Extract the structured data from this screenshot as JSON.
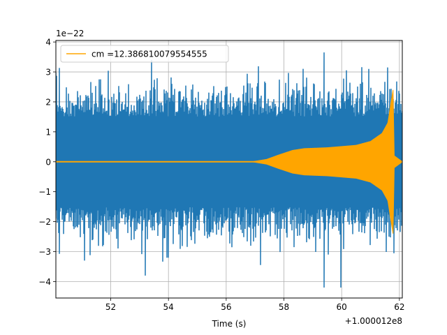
{
  "chart_data": {
    "type": "line",
    "title": "",
    "xlabel": "Time (s)",
    "ylabel": "",
    "x_offset_label": "+1.000012e8",
    "y_scale_label": "1e−22",
    "xlim": [
      50.1,
      62.1
    ],
    "ylim": [
      -4.55,
      4.05
    ],
    "x_ticks": [
      52,
      54,
      56,
      58,
      60,
      62
    ],
    "x_tick_labels": [
      "52",
      "54",
      "56",
      "58",
      "60",
      "62"
    ],
    "y_ticks": [
      -4,
      -3,
      -2,
      -1,
      0,
      1,
      2,
      3,
      4
    ],
    "y_tick_labels": [
      "−4",
      "−3",
      "−2",
      "−1",
      "0",
      "1",
      "2",
      "3",
      "4"
    ],
    "grid": true,
    "legend_placement": "upper-left",
    "series": [
      {
        "kind": "noise-strain",
        "color": "#1f77b4",
        "typical_amplitude": 2.1,
        "min_value": -4.2,
        "max_value": 3.65,
        "peaks": [
          {
            "x": 59.4,
            "y": 3.65
          },
          {
            "x": 61.6,
            "y": 3.15
          },
          {
            "x": 59.4,
            "y": -4.2
          },
          {
            "x": 53.2,
            "y": -3.8
          },
          {
            "x": 57.2,
            "y": -3.45
          },
          {
            "x": 51.1,
            "y": -3.3
          }
        ]
      },
      {
        "name": "cm =12.386810079554555",
        "kind": "chirp-template",
        "color": "#ffa500",
        "envelope": [
          {
            "x": 50.1,
            "y": 0.0
          },
          {
            "x": 56.9,
            "y": 0.0
          },
          {
            "x": 57.4,
            "y": 0.08
          },
          {
            "x": 57.8,
            "y": 0.22
          },
          {
            "x": 58.3,
            "y": 0.38
          },
          {
            "x": 58.7,
            "y": 0.44
          },
          {
            "x": 59.5,
            "y": 0.47
          },
          {
            "x": 60.5,
            "y": 0.55
          },
          {
            "x": 61.0,
            "y": 0.68
          },
          {
            "x": 61.4,
            "y": 0.95
          },
          {
            "x": 61.6,
            "y": 1.3
          },
          {
            "x": 61.72,
            "y": 2.05
          },
          {
            "x": 61.78,
            "y": 2.4
          },
          {
            "x": 61.82,
            "y": 0.2
          },
          {
            "x": 62.1,
            "y": 0.0
          }
        ]
      }
    ]
  }
}
